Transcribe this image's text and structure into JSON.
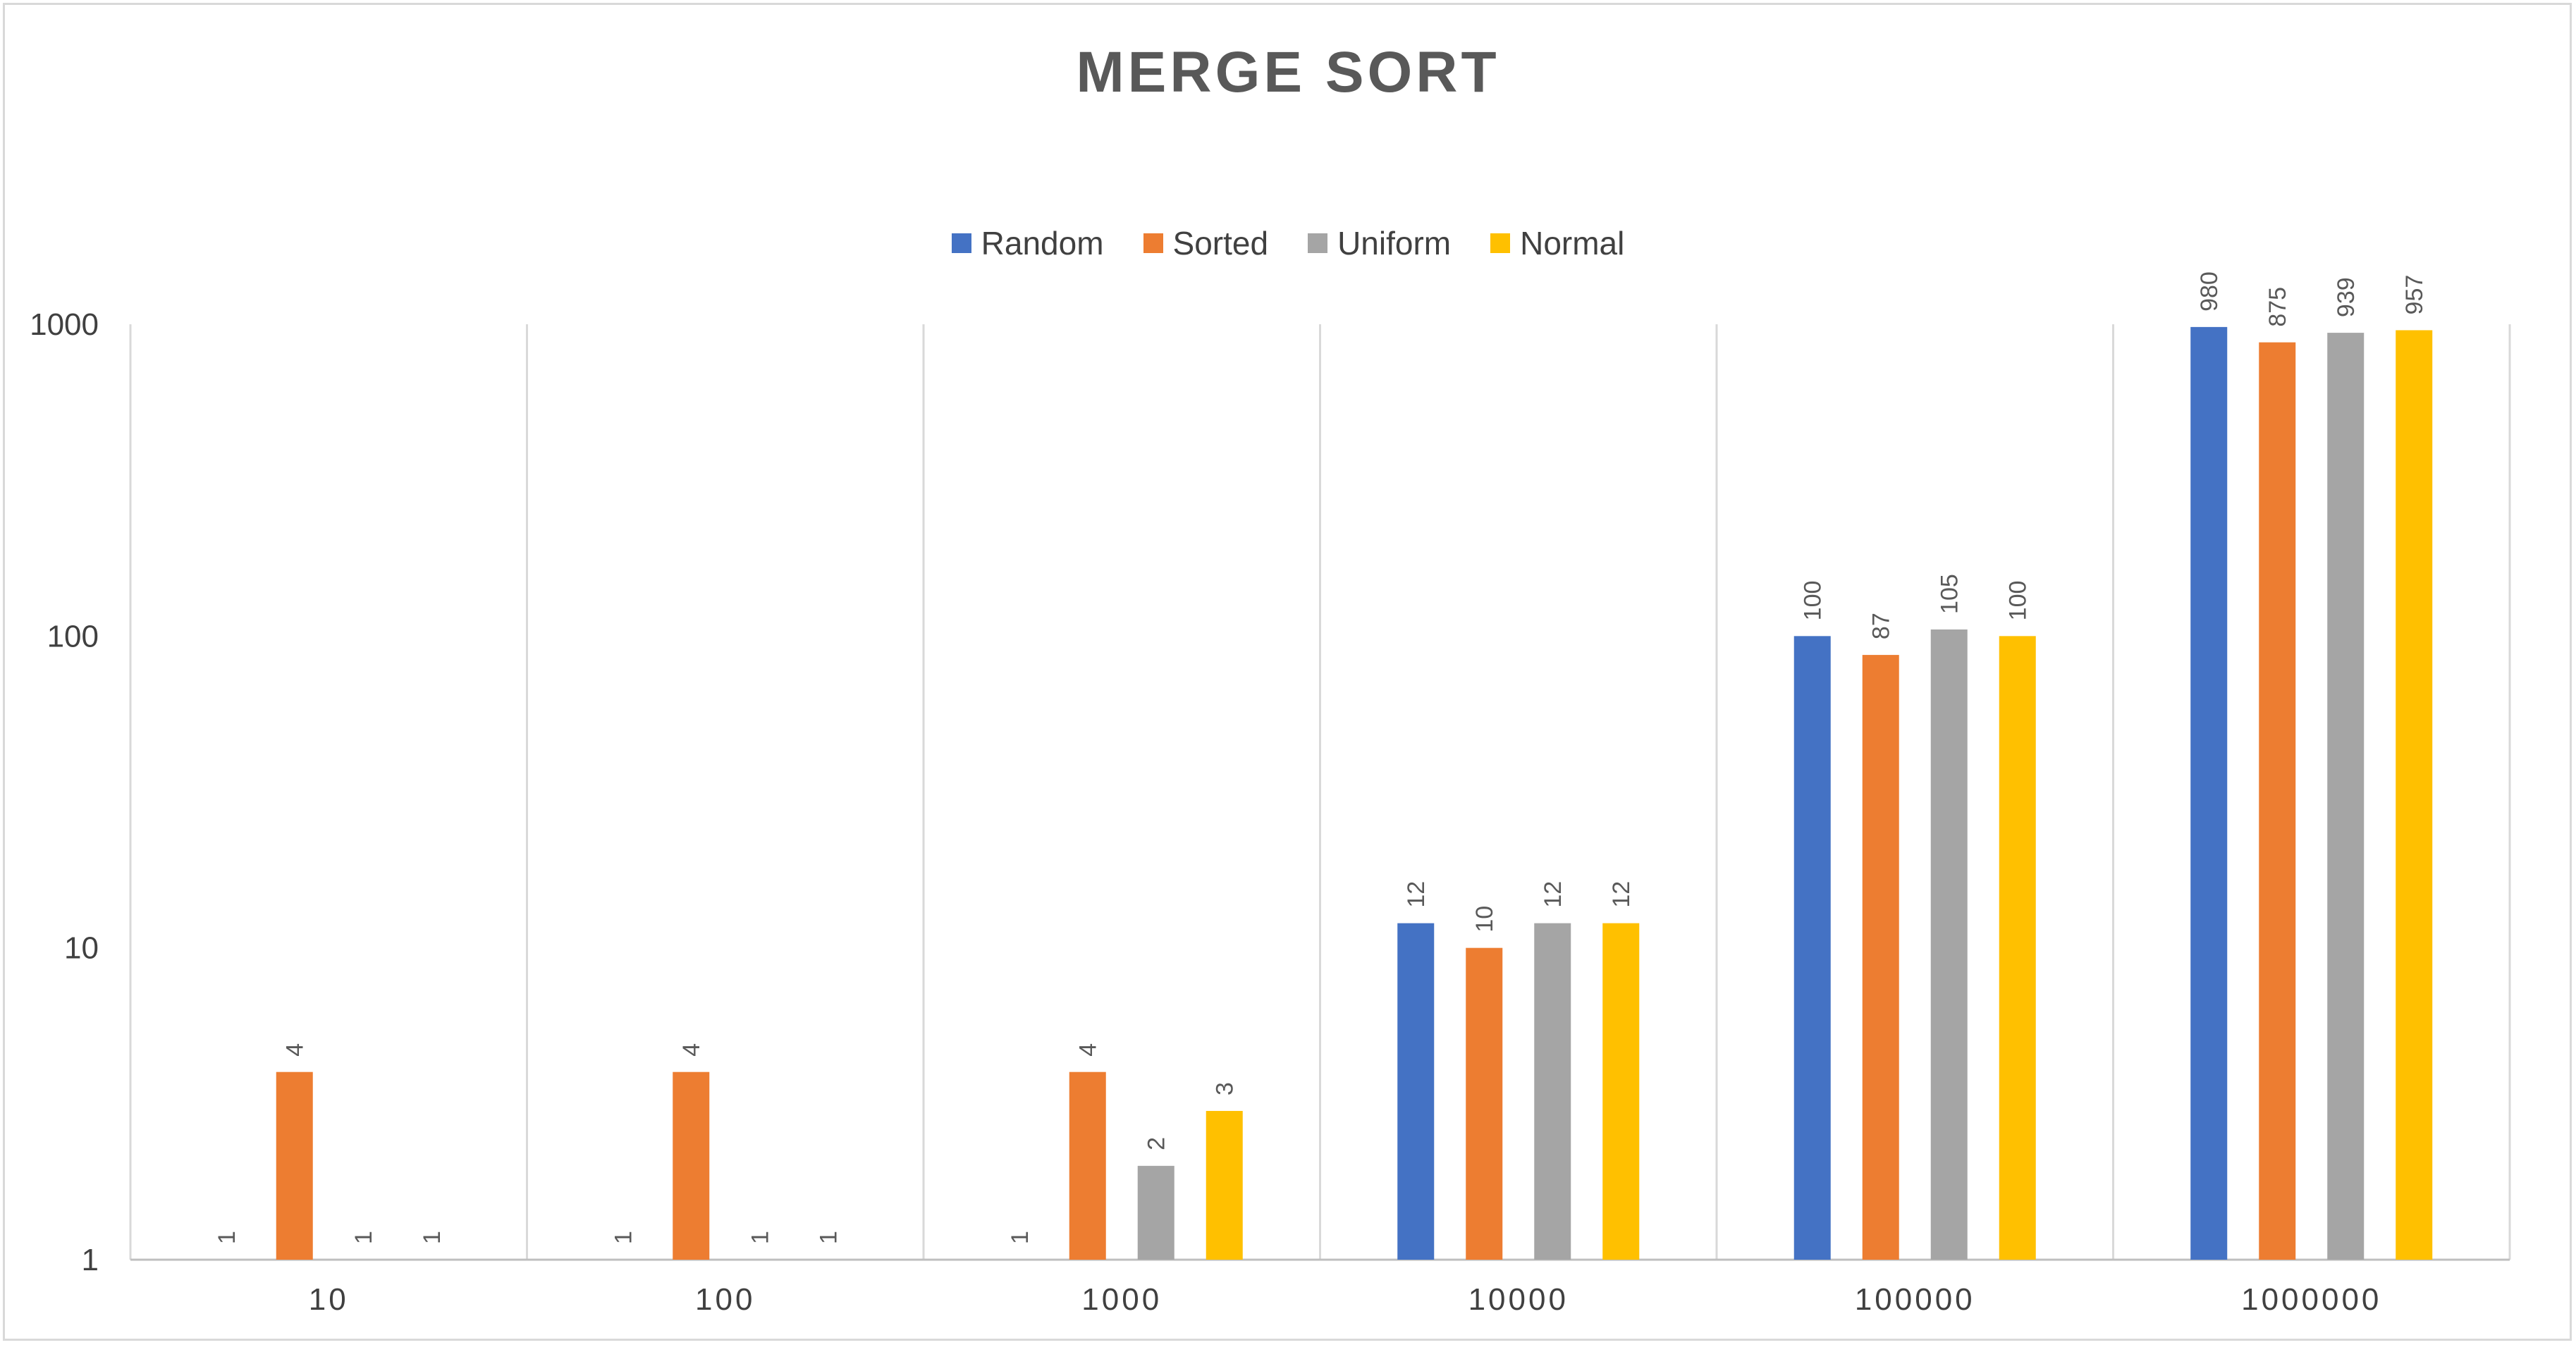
{
  "chart_data": {
    "type": "bar",
    "title": "MERGE SORT",
    "xlabel": "",
    "ylabel": "",
    "y_scale": "log",
    "ylim": [
      1,
      1000
    ],
    "y_ticks": [
      "1",
      "10",
      "100",
      "1000"
    ],
    "categories": [
      "10",
      "100",
      "1000",
      "10000",
      "100000",
      "1000000"
    ],
    "legend_position": "top",
    "series": [
      {
        "name": "Random",
        "color": "#4472C4",
        "values": [
          1,
          1,
          1,
          12,
          100,
          980
        ]
      },
      {
        "name": "Sorted",
        "color": "#ED7D31",
        "values": [
          4,
          4,
          4,
          10,
          87,
          875
        ]
      },
      {
        "name": "Uniform",
        "color": "#A5A5A5",
        "values": [
          1,
          1,
          2,
          12,
          105,
          939
        ]
      },
      {
        "name": "Normal",
        "color": "#FFC000",
        "values": [
          1,
          1,
          3,
          12,
          100,
          957
        ]
      }
    ]
  }
}
